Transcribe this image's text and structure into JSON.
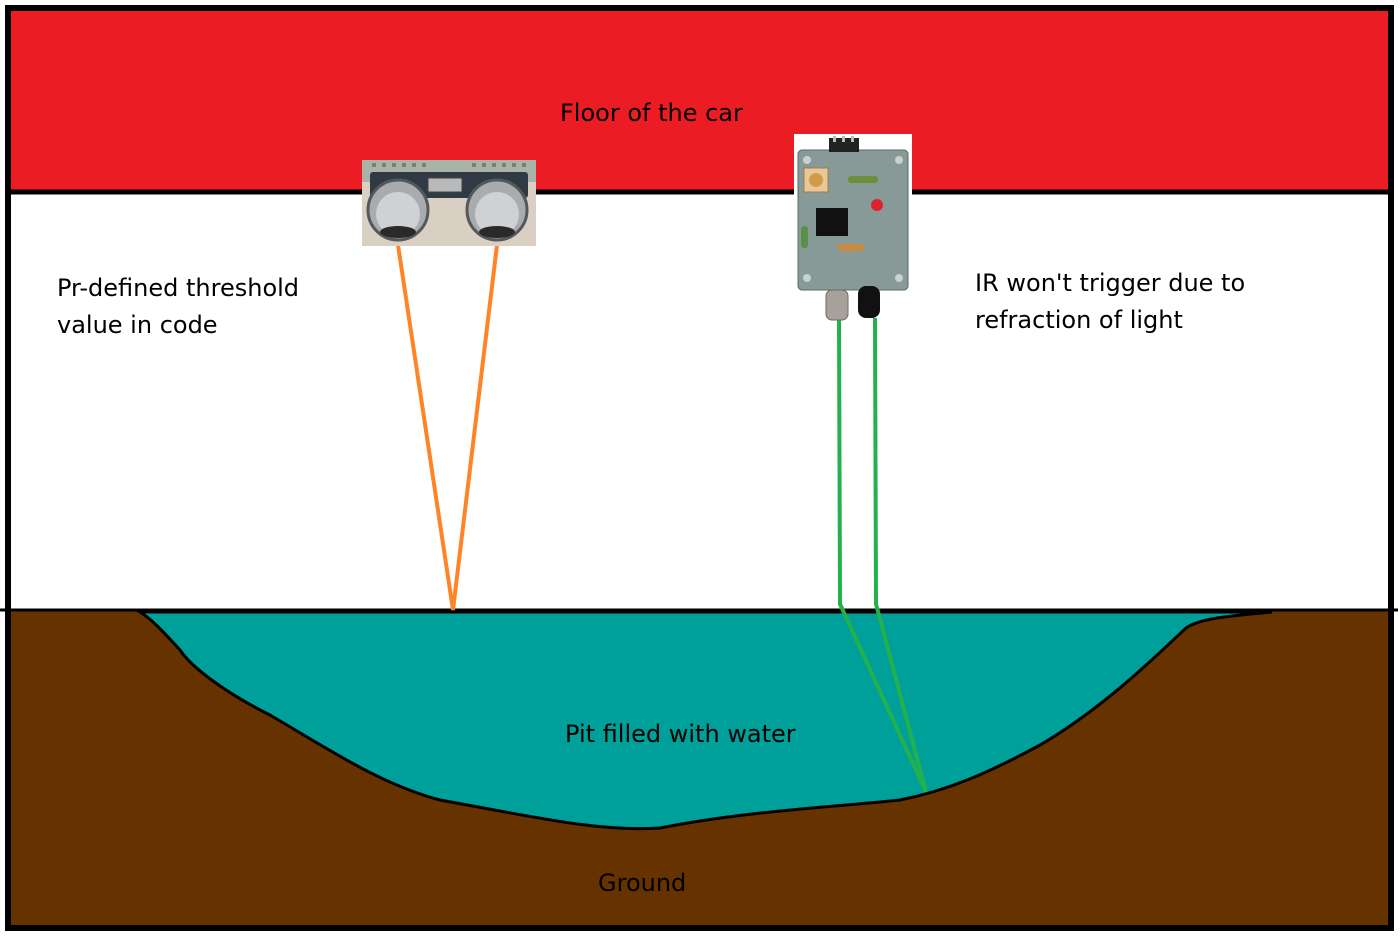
{
  "labels": {
    "floor": "Floor of the car",
    "threshold": "Pr-defined threshold\nvalue in code",
    "ir_note": "IR won't trigger due to\nrefraction of light",
    "pit": "Pit filled with water",
    "ground": "Ground"
  },
  "colors": {
    "floor": "#ec1c24",
    "ground": "#663300",
    "water": "#00a09a",
    "ultrasonic_beam": "#ff8427",
    "ir_beam": "#22b14c",
    "outline": "#000000"
  },
  "icons": {
    "ultrasonic_sensor": "ultrasonic-sensor-icon",
    "ir_sensor": "ir-sensor-module-icon"
  }
}
